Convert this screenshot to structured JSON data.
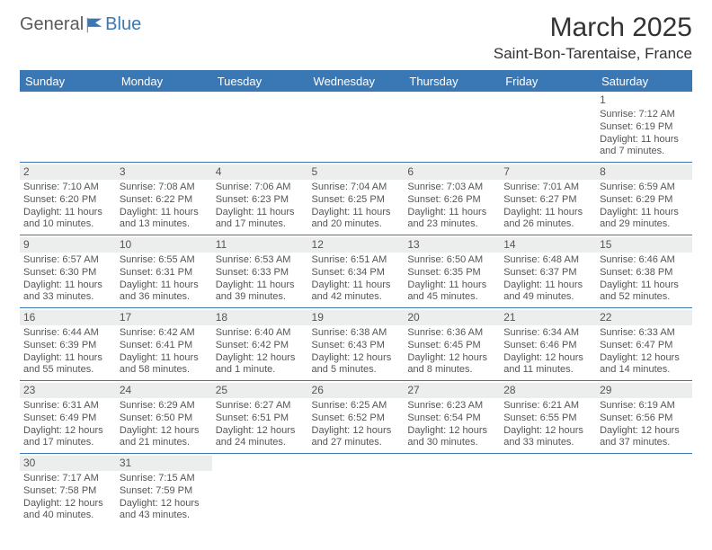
{
  "logo": {
    "word1": "General",
    "word2": "Blue",
    "icon_color": "#3a78b5",
    "text_gray": "#5a5a5a"
  },
  "title": "March 2025",
  "location": "Saint-Bon-Tarentaise, France",
  "header_bg": "#3a78b5",
  "header_fg": "#ffffff",
  "border_color": "#3a78b5",
  "stripe_bg": "#eceeee",
  "text_color": "#555555",
  "day_names": [
    "Sunday",
    "Monday",
    "Tuesday",
    "Wednesday",
    "Thursday",
    "Friday",
    "Saturday"
  ],
  "weeks": [
    [
      null,
      null,
      null,
      null,
      null,
      null,
      {
        "n": "1",
        "sr": "Sunrise: 7:12 AM",
        "ss": "Sunset: 6:19 PM",
        "d1": "Daylight: 11 hours",
        "d2": "and 7 minutes."
      }
    ],
    [
      {
        "n": "2",
        "sr": "Sunrise: 7:10 AM",
        "ss": "Sunset: 6:20 PM",
        "d1": "Daylight: 11 hours",
        "d2": "and 10 minutes."
      },
      {
        "n": "3",
        "sr": "Sunrise: 7:08 AM",
        "ss": "Sunset: 6:22 PM",
        "d1": "Daylight: 11 hours",
        "d2": "and 13 minutes."
      },
      {
        "n": "4",
        "sr": "Sunrise: 7:06 AM",
        "ss": "Sunset: 6:23 PM",
        "d1": "Daylight: 11 hours",
        "d2": "and 17 minutes."
      },
      {
        "n": "5",
        "sr": "Sunrise: 7:04 AM",
        "ss": "Sunset: 6:25 PM",
        "d1": "Daylight: 11 hours",
        "d2": "and 20 minutes."
      },
      {
        "n": "6",
        "sr": "Sunrise: 7:03 AM",
        "ss": "Sunset: 6:26 PM",
        "d1": "Daylight: 11 hours",
        "d2": "and 23 minutes."
      },
      {
        "n": "7",
        "sr": "Sunrise: 7:01 AM",
        "ss": "Sunset: 6:27 PM",
        "d1": "Daylight: 11 hours",
        "d2": "and 26 minutes."
      },
      {
        "n": "8",
        "sr": "Sunrise: 6:59 AM",
        "ss": "Sunset: 6:29 PM",
        "d1": "Daylight: 11 hours",
        "d2": "and 29 minutes."
      }
    ],
    [
      {
        "n": "9",
        "sr": "Sunrise: 6:57 AM",
        "ss": "Sunset: 6:30 PM",
        "d1": "Daylight: 11 hours",
        "d2": "and 33 minutes."
      },
      {
        "n": "10",
        "sr": "Sunrise: 6:55 AM",
        "ss": "Sunset: 6:31 PM",
        "d1": "Daylight: 11 hours",
        "d2": "and 36 minutes."
      },
      {
        "n": "11",
        "sr": "Sunrise: 6:53 AM",
        "ss": "Sunset: 6:33 PM",
        "d1": "Daylight: 11 hours",
        "d2": "and 39 minutes."
      },
      {
        "n": "12",
        "sr": "Sunrise: 6:51 AM",
        "ss": "Sunset: 6:34 PM",
        "d1": "Daylight: 11 hours",
        "d2": "and 42 minutes."
      },
      {
        "n": "13",
        "sr": "Sunrise: 6:50 AM",
        "ss": "Sunset: 6:35 PM",
        "d1": "Daylight: 11 hours",
        "d2": "and 45 minutes."
      },
      {
        "n": "14",
        "sr": "Sunrise: 6:48 AM",
        "ss": "Sunset: 6:37 PM",
        "d1": "Daylight: 11 hours",
        "d2": "and 49 minutes."
      },
      {
        "n": "15",
        "sr": "Sunrise: 6:46 AM",
        "ss": "Sunset: 6:38 PM",
        "d1": "Daylight: 11 hours",
        "d2": "and 52 minutes."
      }
    ],
    [
      {
        "n": "16",
        "sr": "Sunrise: 6:44 AM",
        "ss": "Sunset: 6:39 PM",
        "d1": "Daylight: 11 hours",
        "d2": "and 55 minutes."
      },
      {
        "n": "17",
        "sr": "Sunrise: 6:42 AM",
        "ss": "Sunset: 6:41 PM",
        "d1": "Daylight: 11 hours",
        "d2": "and 58 minutes."
      },
      {
        "n": "18",
        "sr": "Sunrise: 6:40 AM",
        "ss": "Sunset: 6:42 PM",
        "d1": "Daylight: 12 hours",
        "d2": "and 1 minute."
      },
      {
        "n": "19",
        "sr": "Sunrise: 6:38 AM",
        "ss": "Sunset: 6:43 PM",
        "d1": "Daylight: 12 hours",
        "d2": "and 5 minutes."
      },
      {
        "n": "20",
        "sr": "Sunrise: 6:36 AM",
        "ss": "Sunset: 6:45 PM",
        "d1": "Daylight: 12 hours",
        "d2": "and 8 minutes."
      },
      {
        "n": "21",
        "sr": "Sunrise: 6:34 AM",
        "ss": "Sunset: 6:46 PM",
        "d1": "Daylight: 12 hours",
        "d2": "and 11 minutes."
      },
      {
        "n": "22",
        "sr": "Sunrise: 6:33 AM",
        "ss": "Sunset: 6:47 PM",
        "d1": "Daylight: 12 hours",
        "d2": "and 14 minutes."
      }
    ],
    [
      {
        "n": "23",
        "sr": "Sunrise: 6:31 AM",
        "ss": "Sunset: 6:49 PM",
        "d1": "Daylight: 12 hours",
        "d2": "and 17 minutes."
      },
      {
        "n": "24",
        "sr": "Sunrise: 6:29 AM",
        "ss": "Sunset: 6:50 PM",
        "d1": "Daylight: 12 hours",
        "d2": "and 21 minutes."
      },
      {
        "n": "25",
        "sr": "Sunrise: 6:27 AM",
        "ss": "Sunset: 6:51 PM",
        "d1": "Daylight: 12 hours",
        "d2": "and 24 minutes."
      },
      {
        "n": "26",
        "sr": "Sunrise: 6:25 AM",
        "ss": "Sunset: 6:52 PM",
        "d1": "Daylight: 12 hours",
        "d2": "and 27 minutes."
      },
      {
        "n": "27",
        "sr": "Sunrise: 6:23 AM",
        "ss": "Sunset: 6:54 PM",
        "d1": "Daylight: 12 hours",
        "d2": "and 30 minutes."
      },
      {
        "n": "28",
        "sr": "Sunrise: 6:21 AM",
        "ss": "Sunset: 6:55 PM",
        "d1": "Daylight: 12 hours",
        "d2": "and 33 minutes."
      },
      {
        "n": "29",
        "sr": "Sunrise: 6:19 AM",
        "ss": "Sunset: 6:56 PM",
        "d1": "Daylight: 12 hours",
        "d2": "and 37 minutes."
      }
    ],
    [
      {
        "n": "30",
        "sr": "Sunrise: 7:17 AM",
        "ss": "Sunset: 7:58 PM",
        "d1": "Daylight: 12 hours",
        "d2": "and 40 minutes."
      },
      {
        "n": "31",
        "sr": "Sunrise: 7:15 AM",
        "ss": "Sunset: 7:59 PM",
        "d1": "Daylight: 12 hours",
        "d2": "and 43 minutes."
      },
      null,
      null,
      null,
      null,
      null
    ]
  ]
}
